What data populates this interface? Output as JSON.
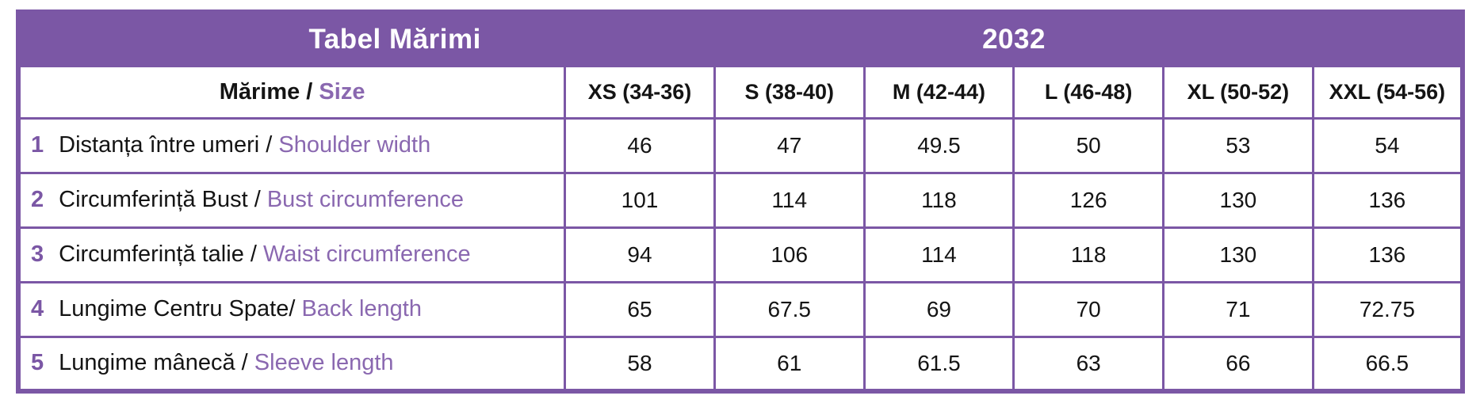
{
  "colors": {
    "band_purple": "#7B57A5",
    "border_purple": "#7B57A5",
    "accent_text_purple": "#8A68B0",
    "band_text": "#FFFFFF",
    "body_text": "#141414",
    "background": "#FFFFFF"
  },
  "table": {
    "title": "Tabel Mărimi",
    "model_code": "2032",
    "size_header": {
      "label_ro": "Mărime /",
      "label_en": "Size"
    },
    "columns": [
      "XS (34-36)",
      "S (38-40)",
      "M (42-44)",
      "L (46-48)",
      "XL (50-52)",
      "XXL (54-56)"
    ],
    "rows": [
      {
        "num": "1",
        "label_ro": "Distanța între umeri /",
        "label_en": "Shoulder width",
        "values": [
          "46",
          "47",
          "49.5",
          "50",
          "53",
          "54"
        ]
      },
      {
        "num": "2",
        "label_ro": "Circumferință Bust /",
        "label_en": "Bust circumference",
        "values": [
          "101",
          "114",
          "118",
          "126",
          "130",
          "136"
        ]
      },
      {
        "num": "3",
        "label_ro": "Circumferință talie /",
        "label_en": "Waist circumference",
        "values": [
          "94",
          "106",
          "114",
          "118",
          "130",
          "136"
        ]
      },
      {
        "num": "4",
        "label_ro": "Lungime Centru Spate/",
        "label_en": "Back length",
        "values": [
          "65",
          "67.5",
          "69",
          "70",
          "71",
          "72.75"
        ]
      },
      {
        "num": "5",
        "label_ro": "Lungime mânecă /",
        "label_en": "Sleeve length",
        "values": [
          "58",
          "61",
          "61.5",
          "63",
          "66",
          "66.5"
        ]
      }
    ]
  },
  "chart_data": {
    "type": "table",
    "title": "Tabel Mărimi",
    "model": "2032",
    "columns": [
      "XS (34-36)",
      "S (38-40)",
      "M (42-44)",
      "L (46-48)",
      "XL (50-52)",
      "XXL (54-56)"
    ],
    "rows": [
      {
        "measurement_ro": "Distanța între umeri",
        "measurement_en": "Shoulder width",
        "values": [
          46,
          47,
          49.5,
          50,
          53,
          54
        ]
      },
      {
        "measurement_ro": "Circumferință Bust",
        "measurement_en": "Bust circumference",
        "values": [
          101,
          114,
          118,
          126,
          130,
          136
        ]
      },
      {
        "measurement_ro": "Circumferință talie",
        "measurement_en": "Waist circumference",
        "values": [
          94,
          106,
          114,
          118,
          130,
          136
        ]
      },
      {
        "measurement_ro": "Lungime Centru Spate",
        "measurement_en": "Back length",
        "values": [
          65,
          67.5,
          69,
          70,
          71,
          72.75
        ]
      },
      {
        "measurement_ro": "Lungime mânecă",
        "measurement_en": "Sleeve length",
        "values": [
          58,
          61,
          61.5,
          63,
          66,
          66.5
        ]
      }
    ]
  }
}
